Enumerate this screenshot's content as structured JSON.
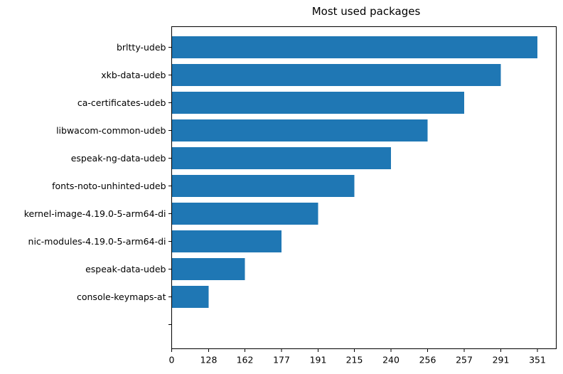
{
  "chart_data": {
    "type": "bar",
    "orientation": "horizontal",
    "title": "Most used packages",
    "xlabel": "",
    "ylabel": "",
    "categories": [
      "brltty-udeb",
      "xkb-data-udeb",
      "ca-certificates-udeb",
      "libwacom-common-udeb",
      "espeak-ng-data-udeb",
      "fonts-noto-unhinted-udeb",
      "kernel-image-4.19.0-5-arm64-di",
      "nic-modules-4.19.0-5-arm64-di",
      "espeak-data-udeb",
      "console-keymaps-at",
      ""
    ],
    "values": [
      351,
      291,
      257,
      256,
      240,
      215,
      191,
      177,
      162,
      128,
      0
    ],
    "x_tick_labels": [
      "0",
      "128",
      "162",
      "177",
      "191",
      "215",
      "240",
      "256",
      "257",
      "291",
      "351"
    ],
    "grid": false,
    "legend": "none",
    "bar_color": "#1f77b4"
  }
}
